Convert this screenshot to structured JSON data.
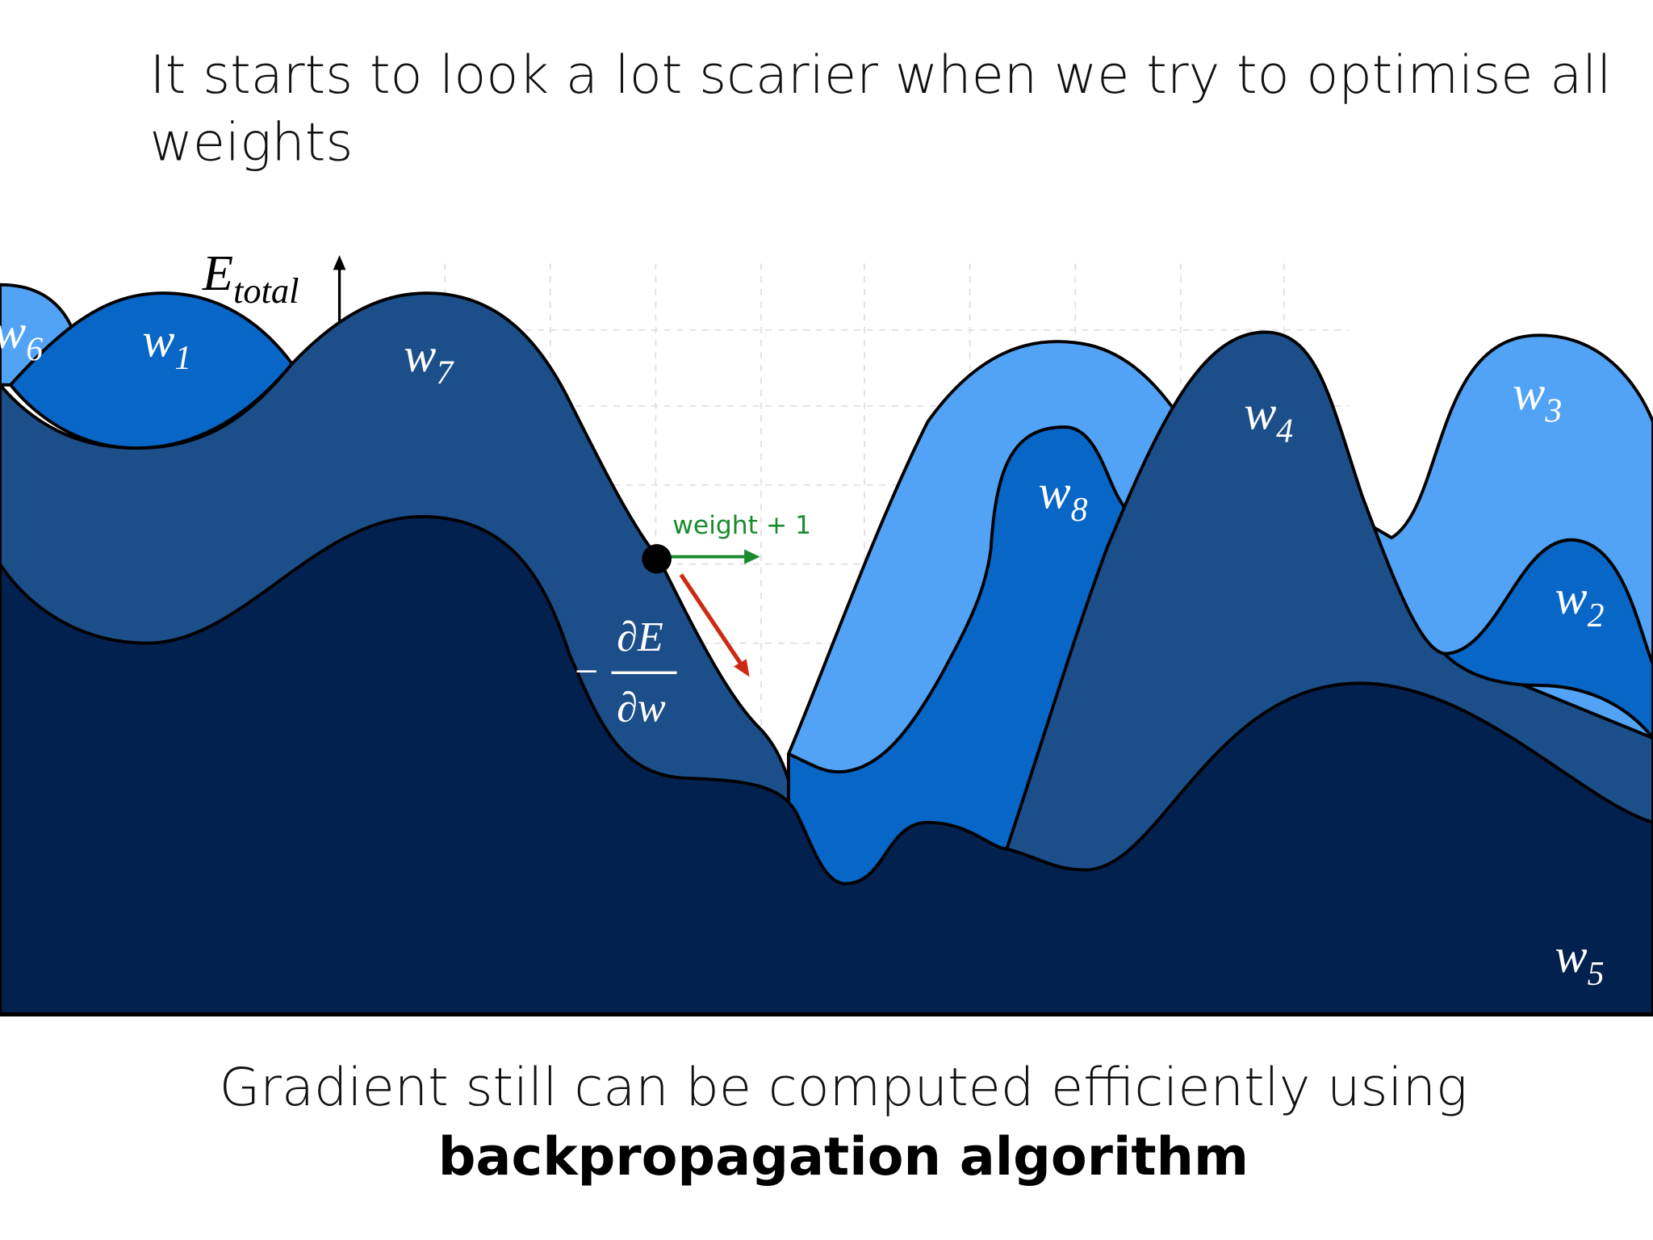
{
  "header": {
    "title": "It starts to look a lot scarier when we try to optimise all weights"
  },
  "diagram": {
    "axis_label": {
      "base": "E",
      "sub": "total"
    },
    "regions": [
      {
        "base": "w",
        "sub": "6"
      },
      {
        "base": "w",
        "sub": "1"
      },
      {
        "base": "w",
        "sub": "7"
      },
      {
        "base": "w",
        "sub": "4"
      },
      {
        "base": "w",
        "sub": "8"
      },
      {
        "base": "w",
        "sub": "3"
      },
      {
        "base": "w",
        "sub": "2"
      },
      {
        "base": "w",
        "sub": "5"
      }
    ],
    "step_label": "weight + 1",
    "gradient": {
      "sign": "−",
      "numerator": "∂E",
      "denominator": "∂w"
    }
  },
  "footer": {
    "line1": "Gradient still can be computed efficiently using",
    "line2": "backpropagation algorithm"
  }
}
